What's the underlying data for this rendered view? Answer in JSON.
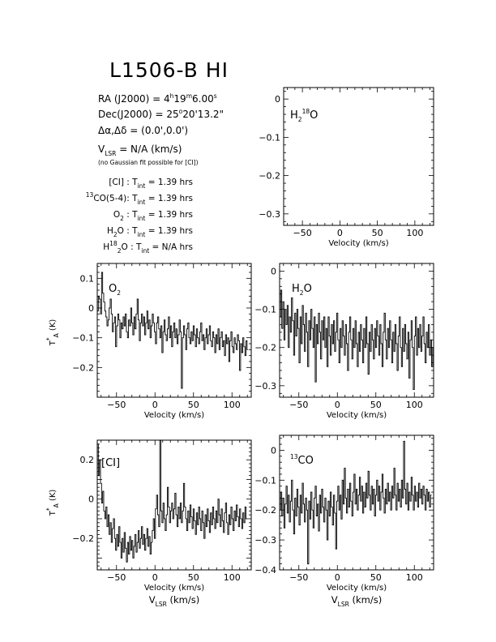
{
  "header": {
    "title": "L1506-B HI",
    "ra_label": "RA (J2000) = ",
    "ra_h": "4",
    "ra_hs": "h",
    "ra_m": "19",
    "ra_ms": "m",
    "ra_s": "6.00",
    "ra_ss": "s",
    "dec_label": "Dec(J2000) = ",
    "dec_d": "25",
    "dec_ds": "o",
    "dec_rest": "20'13.2\"",
    "offset": "Δα,Δδ = (0.0',0.0')",
    "vlsr_v": "V",
    "vlsr_sub": "LSR",
    "vlsr_rest": " = N/A  (km/s)",
    "note": "(no Gaussian fit possible for [CI])",
    "tint_T": "T",
    "tint_sub": "int",
    "integrations": [
      {
        "pre": "",
        "sup": "",
        "mid": "",
        "sub": "",
        "post": "[CI] : ",
        "value": " = 1.39 hrs"
      },
      {
        "pre": "",
        "sup": "13",
        "mid": "CO(5-4): ",
        "sub": "",
        "post": "",
        "value": " = 1.39 hrs"
      },
      {
        "pre": "O",
        "sup": "",
        "mid": "",
        "sub": "2",
        "post": " : ",
        "value": " = 1.39 hrs"
      },
      {
        "pre": "H",
        "sup": "",
        "mid": "",
        "sub": "2",
        "post": "O : ",
        "value": " = 1.39 hrs"
      },
      {
        "pre": "H",
        "sup": "18",
        "mid": "",
        "sub": "2",
        "post": "O : ",
        "value": " = N/A hrs"
      }
    ]
  },
  "axis_labels": {
    "xlabel": "Velocity (km/s)",
    "ylabel_T": "T",
    "ylabel_sup": "*",
    "ylabel_sub": "A",
    "ylabel_unit": " (K)",
    "vlsr_V": "V",
    "vlsr_sub": "LSR",
    "vlsr_unit": " (km/s)"
  },
  "chart_data": [
    {
      "id": "h218o",
      "type": "line",
      "label_pre": "H",
      "label_sub": "2",
      "label_sup": "18",
      "label_post": "O",
      "xlim": [
        -75,
        125
      ],
      "ylim": [
        -0.33,
        0.03
      ],
      "xticks": [
        -50,
        0,
        50,
        100
      ],
      "xticklabels": [
        "−50",
        "0",
        "50",
        "100"
      ],
      "yticks": [
        0,
        -0.1,
        -0.2,
        -0.3
      ],
      "yticklabels": [
        "0",
        "−0.1",
        "−0.2",
        "−0.3"
      ],
      "series": []
    },
    {
      "id": "o2",
      "type": "line",
      "label_pre": "O",
      "label_sub": "2",
      "label_sup": "",
      "label_post": "",
      "xlim": [
        -75,
        125
      ],
      "ylim": [
        -0.3,
        0.15
      ],
      "xticks": [
        -50,
        0,
        50,
        100
      ],
      "xticklabels": [
        "−50",
        "0",
        "50",
        "100"
      ],
      "yticks": [
        0.1,
        0,
        -0.1,
        -0.2
      ],
      "yticklabels": [
        "0.1",
        "0",
        "−0.1",
        "−0.2"
      ],
      "series": [
        {
          "x0": -75,
          "dx": 1.4,
          "y": [
            -0.01,
            0.04,
            0.03,
            -0.02,
            0.12,
            0.05,
            0.02,
            -0.01,
            -0.03,
            -0.06,
            -0.04,
            0.0,
            0.03,
            -0.02,
            -0.08,
            -0.05,
            -0.03,
            -0.13,
            -0.06,
            -0.02,
            -0.04,
            -0.1,
            -0.05,
            -0.07,
            -0.03,
            -0.06,
            -0.02,
            -0.08,
            -0.1,
            -0.04,
            -0.06,
            0.0,
            -0.05,
            -0.09,
            -0.03,
            -0.07,
            -0.02,
            0.03,
            -0.04,
            -0.11,
            -0.05,
            -0.02,
            -0.06,
            -0.03,
            -0.09,
            -0.05,
            -0.01,
            -0.07,
            -0.04,
            -0.1,
            -0.06,
            -0.02,
            -0.05,
            -0.08,
            -0.12,
            -0.05,
            -0.03,
            -0.07,
            -0.1,
            -0.06,
            -0.15,
            -0.08,
            -0.04,
            -0.09,
            -0.11,
            -0.07,
            -0.03,
            -0.1,
            -0.06,
            -0.13,
            -0.08,
            -0.05,
            -0.1,
            -0.07,
            -0.12,
            -0.09,
            -0.04,
            -0.08,
            -0.27,
            -0.1,
            -0.06,
            -0.09,
            -0.14,
            -0.07,
            -0.05,
            -0.1,
            -0.12,
            -0.08,
            -0.11,
            -0.06,
            -0.09,
            -0.13,
            -0.07,
            -0.1,
            -0.12,
            -0.08,
            -0.05,
            -0.11,
            -0.09,
            -0.14,
            -0.1,
            -0.07,
            -0.12,
            -0.09,
            -0.06,
            -0.11,
            -0.13,
            -0.08,
            -0.1,
            -0.15,
            -0.09,
            -0.12,
            -0.07,
            -0.14,
            -0.1,
            -0.08,
            -0.13,
            -0.11,
            -0.16,
            -0.09,
            -0.12,
            -0.1,
            -0.18,
            -0.11,
            -0.08,
            -0.13,
            -0.15,
            -0.1,
            -0.12,
            -0.14,
            -0.09,
            -0.11,
            -0.21,
            -0.12,
            -0.15,
            -0.1,
            -0.13,
            -0.16,
            -0.11,
            -0.14
          ]
        }
      ]
    },
    {
      "id": "h2o",
      "type": "line",
      "label_pre": "H",
      "label_sub": "2",
      "label_sup": "",
      "label_post": "O",
      "xlim": [
        -75,
        125
      ],
      "ylim": [
        -0.33,
        0.02
      ],
      "xticks": [
        -50,
        0,
        50,
        100
      ],
      "xticklabels": [
        "−50",
        "0",
        "50",
        "100"
      ],
      "yticks": [
        0,
        -0.1,
        -0.2,
        -0.3
      ],
      "yticklabels": [
        "0",
        "−0.1",
        "−0.2",
        "−0.3"
      ],
      "series": [
        {
          "x0": -75,
          "dx": 1.4,
          "y": [
            -0.12,
            -0.05,
            -0.15,
            -0.08,
            -0.18,
            -0.1,
            -0.14,
            -0.09,
            -0.2,
            -0.12,
            -0.16,
            -0.07,
            -0.13,
            -0.22,
            -0.11,
            -0.17,
            -0.1,
            -0.15,
            -0.24,
            -0.12,
            -0.19,
            -0.09,
            -0.14,
            -0.21,
            -0.11,
            -0.16,
            -0.25,
            -0.13,
            -0.18,
            -0.1,
            -0.15,
            -0.2,
            -0.12,
            -0.29,
            -0.14,
            -0.19,
            -0.11,
            -0.16,
            -0.23,
            -0.13,
            -0.18,
            -0.12,
            -0.2,
            -0.15,
            -0.25,
            -0.12,
            -0.17,
            -0.22,
            -0.14,
            -0.19,
            -0.13,
            -0.21,
            -0.16,
            -0.11,
            -0.18,
            -0.24,
            -0.15,
            -0.2,
            -0.13,
            -0.17,
            -0.22,
            -0.14,
            -0.19,
            -0.26,
            -0.16,
            -0.12,
            -0.18,
            -0.23,
            -0.15,
            -0.2,
            -0.13,
            -0.19,
            -0.25,
            -0.16,
            -0.21,
            -0.14,
            -0.18,
            -0.24,
            -0.15,
            -0.2,
            -0.12,
            -0.19,
            -0.27,
            -0.16,
            -0.21,
            -0.14,
            -0.18,
            -0.23,
            -0.15,
            -0.2,
            -0.13,
            -0.17,
            -0.22,
            -0.14,
            -0.19,
            -0.25,
            -0.16,
            -0.11,
            -0.18,
            -0.23,
            -0.15,
            -0.2,
            -0.13,
            -0.18,
            -0.24,
            -0.16,
            -0.21,
            -0.14,
            -0.19,
            -0.26,
            -0.17,
            -0.12,
            -0.2,
            -0.25,
            -0.15,
            -0.21,
            -0.14,
            -0.19,
            -0.23,
            -0.16,
            -0.28,
            -0.18,
            -0.13,
            -0.2,
            -0.31,
            -0.17,
            -0.12,
            -0.22,
            -0.15,
            -0.2,
            -0.14,
            -0.21,
            -0.17,
            -0.12,
            -0.19,
            -0.24,
            -0.16,
            -0.2,
            -0.14,
            -0.22,
            -0.18,
            -0.25,
            -0.2
          ]
        }
      ]
    },
    {
      "id": "ci",
      "type": "line",
      "label_pre": "[CI]",
      "label_sub": "",
      "label_sup": "",
      "label_post": "",
      "xlim": [
        -75,
        125
      ],
      "ylim": [
        -0.36,
        0.3
      ],
      "xticks": [
        -50,
        0,
        50,
        100
      ],
      "xticklabels": [
        "−50",
        "0",
        "50",
        "100"
      ],
      "yticks": [
        0.2,
        0,
        -0.2
      ],
      "yticklabels": [
        "0.2",
        "0",
        "−0.2"
      ],
      "series": [
        {
          "x0": -75,
          "dx": 1.4,
          "y": [
            0.28,
            0.12,
            0.2,
            0.08,
            -0.02,
            0.04,
            -0.06,
            -0.1,
            -0.04,
            -0.14,
            -0.08,
            -0.18,
            -0.12,
            -0.22,
            -0.15,
            -0.1,
            -0.2,
            -0.26,
            -0.18,
            -0.24,
            -0.14,
            -0.22,
            -0.3,
            -0.2,
            -0.27,
            -0.17,
            -0.25,
            -0.32,
            -0.22,
            -0.28,
            -0.19,
            -0.26,
            -0.21,
            -0.3,
            -0.24,
            -0.18,
            -0.27,
            -0.22,
            -0.16,
            -0.25,
            -0.2,
            -0.14,
            -0.23,
            -0.18,
            -0.26,
            -0.2,
            -0.15,
            -0.24,
            -0.19,
            -0.28,
            -0.22,
            -0.16,
            -0.1,
            -0.2,
            -0.05,
            0.02,
            -0.08,
            -0.14,
            0.3,
            -0.06,
            -0.12,
            -0.02,
            -0.1,
            -0.16,
            -0.08,
            0.06,
            -0.04,
            -0.12,
            -0.06,
            -0.02,
            -0.1,
            -0.05,
            0.03,
            -0.08,
            -0.14,
            -0.04,
            -0.1,
            -0.02,
            -0.12,
            -0.06,
            0.08,
            -0.04,
            -0.1,
            -0.16,
            -0.06,
            -0.12,
            -0.03,
            -0.09,
            -0.15,
            -0.05,
            -0.11,
            -0.18,
            -0.07,
            -0.13,
            -0.04,
            -0.1,
            -0.16,
            -0.06,
            -0.12,
            -0.2,
            -0.08,
            -0.14,
            -0.05,
            -0.11,
            -0.17,
            -0.07,
            -0.13,
            -0.04,
            -0.1,
            -0.15,
            -0.06,
            -0.12,
            0.0,
            -0.08,
            -0.14,
            -0.05,
            -0.11,
            -0.17,
            -0.07,
            -0.02,
            -0.12,
            -0.18,
            -0.08,
            -0.13,
            -0.04,
            -0.1,
            -0.16,
            -0.06,
            -0.11,
            -0.03,
            -0.09,
            -0.14,
            -0.05,
            -0.1,
            -0.15,
            -0.07,
            -0.12,
            -0.04,
            -0.1
          ]
        }
      ]
    },
    {
      "id": "13co",
      "type": "line",
      "label_pre": "",
      "label_sub": "",
      "label_sup": "13",
      "label_post": "CO",
      "xlim": [
        -75,
        125
      ],
      "ylim": [
        -0.4,
        0.05
      ],
      "xticks": [
        -50,
        0,
        50,
        100
      ],
      "xticklabels": [
        "−50",
        "0",
        "50",
        "100"
      ],
      "yticks": [
        0,
        -0.1,
        -0.2,
        -0.3,
        -0.4
      ],
      "yticklabels": [
        "0",
        "−0.1",
        "−0.2",
        "−0.3",
        "−0.4"
      ],
      "series": [
        {
          "x0": -75,
          "dx": 1.4,
          "y": [
            -0.2,
            -0.14,
            -0.22,
            -0.16,
            -0.26,
            -0.18,
            -0.12,
            -0.21,
            -0.15,
            -0.24,
            -0.17,
            -0.1,
            -0.2,
            -0.28,
            -0.16,
            -0.22,
            -0.13,
            -0.19,
            -0.25,
            -0.15,
            -0.21,
            -0.11,
            -0.18,
            -0.24,
            -0.16,
            -0.2,
            -0.38,
            -0.17,
            -0.23,
            -0.14,
            -0.2,
            -0.26,
            -0.16,
            -0.12,
            -0.22,
            -0.18,
            -0.27,
            -0.15,
            -0.21,
            -0.13,
            -0.19,
            -0.24,
            -0.16,
            -0.2,
            -0.3,
            -0.17,
            -0.22,
            -0.14,
            -0.19,
            -0.25,
            -0.15,
            -0.21,
            -0.33,
            -0.17,
            -0.12,
            -0.2,
            -0.15,
            -0.23,
            -0.1,
            -0.18,
            -0.06,
            -0.16,
            -0.21,
            -0.13,
            -0.19,
            -0.11,
            -0.17,
            -0.22,
            -0.14,
            -0.08,
            -0.18,
            -0.13,
            -0.2,
            -0.15,
            -0.09,
            -0.17,
            -0.12,
            -0.21,
            -0.14,
            -0.19,
            -0.11,
            -0.16,
            -0.07,
            -0.15,
            -0.2,
            -0.12,
            -0.18,
            -0.13,
            -0.22,
            -0.15,
            -0.1,
            -0.17,
            -0.12,
            -0.2,
            -0.14,
            -0.08,
            -0.16,
            -0.21,
            -0.13,
            -0.18,
            -0.11,
            -0.17,
            -0.14,
            -0.2,
            -0.12,
            -0.16,
            -0.06,
            -0.15,
            -0.2,
            -0.11,
            -0.17,
            -0.13,
            -0.19,
            -0.1,
            -0.16,
            0.03,
            -0.13,
            -0.18,
            -0.11,
            -0.2,
            -0.14,
            -0.17,
            -0.09,
            -0.15,
            -0.2,
            -0.12,
            -0.17,
            -0.14,
            -0.19,
            -0.11,
            -0.16,
            -0.13,
            -0.18,
            -0.12,
            -0.15,
            -0.2,
            -0.13,
            -0.17,
            -0.14,
            -0.19,
            -0.15
          ]
        }
      ]
    }
  ]
}
